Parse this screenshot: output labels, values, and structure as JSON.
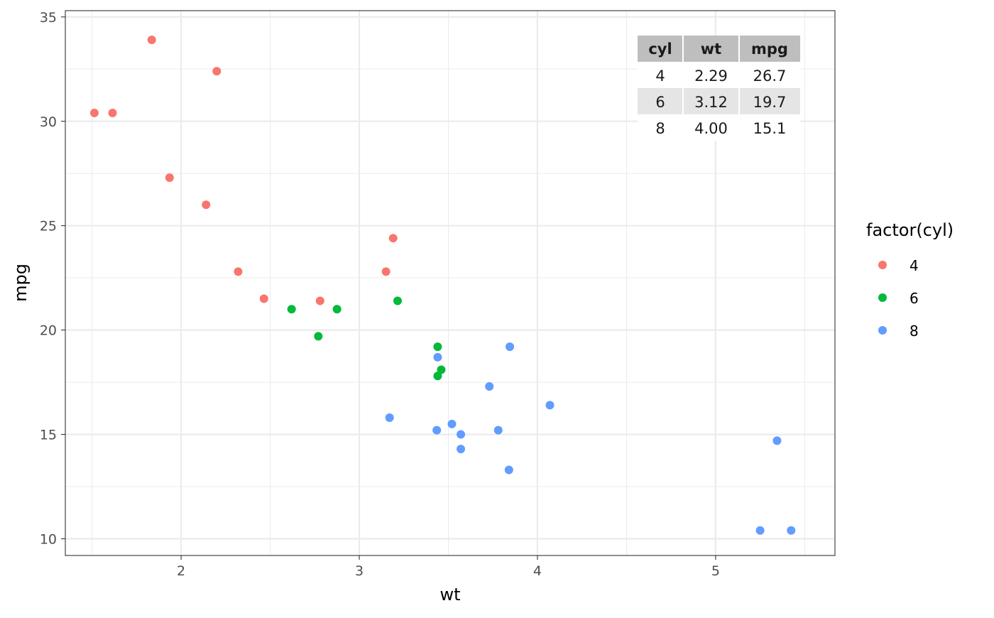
{
  "chart_data": {
    "type": "scatter",
    "xlabel": "wt",
    "ylabel": "mpg",
    "xlim": [
      1.35,
      5.67
    ],
    "ylim": [
      9.2,
      35.3
    ],
    "x_ticks": [
      2,
      3,
      4,
      5
    ],
    "y_ticks": [
      10,
      15,
      20,
      25,
      30,
      35
    ],
    "x_tick_labels": [
      "2",
      "3",
      "4",
      "5"
    ],
    "y_tick_labels": [
      "10",
      "15",
      "20",
      "25",
      "30",
      "35"
    ],
    "x_minor": [
      1.5,
      2.5,
      3.5,
      4.5,
      5.5
    ],
    "y_minor": [
      12.5,
      17.5,
      22.5,
      27.5,
      32.5
    ],
    "grid": true,
    "legend": {
      "title": "factor(cyl)",
      "position": "right",
      "entries": [
        "4",
        "6",
        "8"
      ]
    },
    "series": [
      {
        "name": "4",
        "color": "#F8766D",
        "points": [
          [
            2.32,
            22.8
          ],
          [
            3.19,
            24.4
          ],
          [
            3.15,
            22.8
          ],
          [
            2.2,
            32.4
          ],
          [
            1.615,
            30.4
          ],
          [
            1.835,
            33.9
          ],
          [
            2.465,
            21.5
          ],
          [
            1.935,
            27.3
          ],
          [
            2.14,
            26.0
          ],
          [
            1.513,
            30.4
          ],
          [
            2.78,
            21.4
          ]
        ]
      },
      {
        "name": "6",
        "color": "#00BA38",
        "points": [
          [
            2.62,
            21.0
          ],
          [
            2.875,
            21.0
          ],
          [
            3.215,
            21.4
          ],
          [
            3.46,
            18.1
          ],
          [
            3.44,
            19.2
          ],
          [
            3.44,
            17.8
          ],
          [
            2.77,
            19.7
          ]
        ]
      },
      {
        "name": "8",
        "color": "#619CFF",
        "points": [
          [
            3.44,
            18.7
          ],
          [
            3.57,
            14.3
          ],
          [
            4.07,
            16.4
          ],
          [
            3.73,
            17.3
          ],
          [
            3.78,
            15.2
          ],
          [
            5.25,
            10.4
          ],
          [
            5.424,
            10.4
          ],
          [
            5.345,
            14.7
          ],
          [
            3.52,
            15.5
          ],
          [
            3.435,
            15.2
          ],
          [
            3.84,
            13.3
          ],
          [
            3.845,
            19.2
          ],
          [
            3.17,
            15.8
          ],
          [
            3.57,
            15.0
          ]
        ]
      }
    ],
    "table": {
      "headers": [
        "cyl",
        "wt",
        "mpg"
      ],
      "rows": [
        [
          "4",
          "2.29",
          "26.7"
        ],
        [
          "6",
          "3.12",
          "19.7"
        ],
        [
          "8",
          "4.00",
          "15.1"
        ]
      ]
    }
  }
}
